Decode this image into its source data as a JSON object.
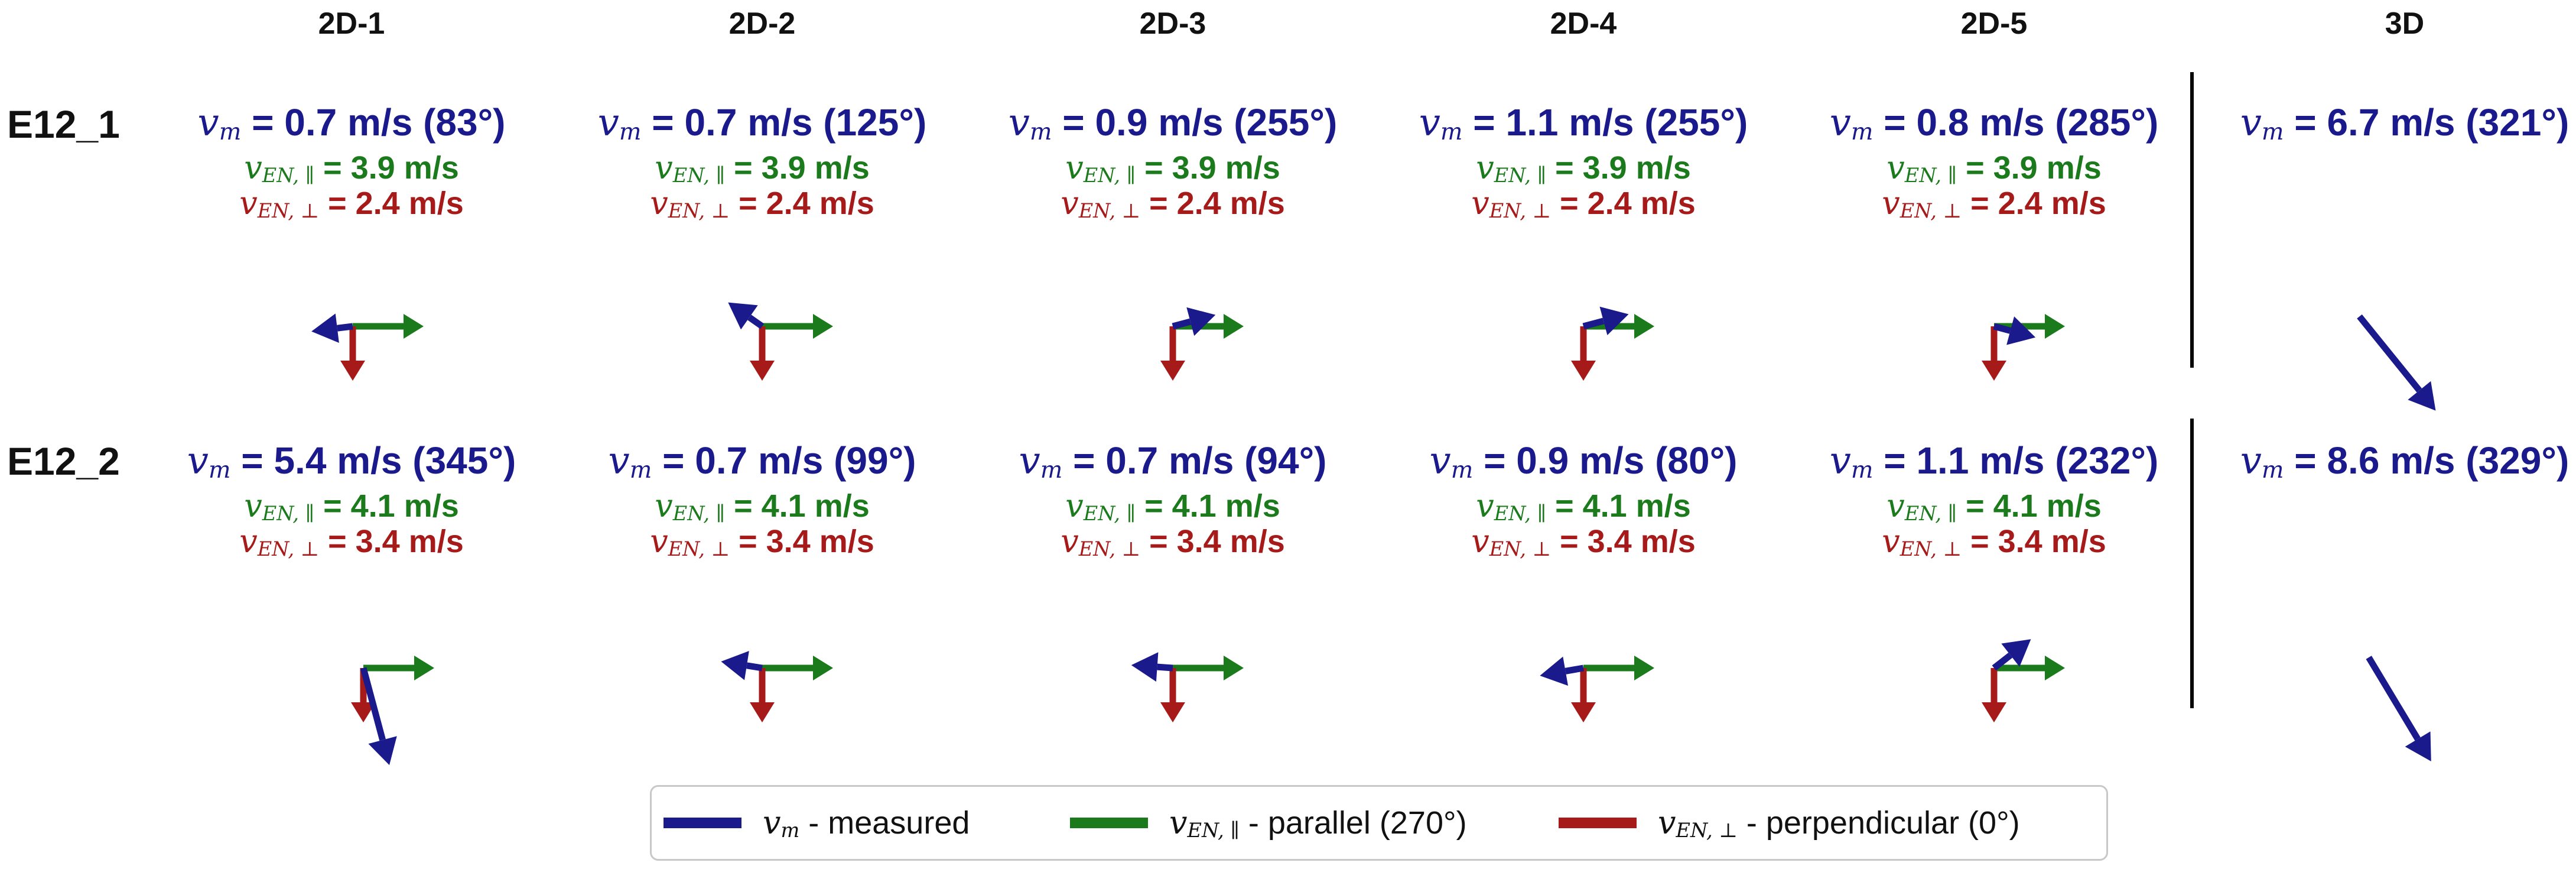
{
  "columns": [
    "2D-1",
    "2D-2",
    "2D-3",
    "2D-4",
    "2D-5",
    "3D"
  ],
  "symbols": {
    "vm": "v",
    "vm_sub": "m",
    "ven": "v",
    "ven_par_sub": "EN, ∥",
    "ven_perp_sub": "EN, ⊥"
  },
  "rows": [
    {
      "label": "E12_1",
      "cells": [
        {
          "vm_value": " = 0.7 m/s (83°)",
          "vm_angle_deg": 83,
          "ven_par_value": " = 3.9 m/s",
          "ven_perp_value": " = 2.4 m/s"
        },
        {
          "vm_value": " = 0.7 m/s (125°)",
          "vm_angle_deg": 125,
          "ven_par_value": " = 3.9 m/s",
          "ven_perp_value": " = 2.4 m/s"
        },
        {
          "vm_value": " = 0.9 m/s (255°)",
          "vm_angle_deg": 255,
          "ven_par_value": " = 3.9 m/s",
          "ven_perp_value": " = 2.4 m/s"
        },
        {
          "vm_value": " = 1.1 m/s (255°)",
          "vm_angle_deg": 255,
          "ven_par_value": " = 3.9 m/s",
          "ven_perp_value": " = 2.4 m/s"
        },
        {
          "vm_value": " = 0.8 m/s (285°)",
          "vm_angle_deg": 285,
          "ven_par_value": " = 3.9 m/s",
          "ven_perp_value": " = 2.4 m/s"
        }
      ],
      "three_d": {
        "vm_value": " = 6.7 m/s (321°)",
        "vm_angle_deg": 321
      }
    },
    {
      "label": "E12_2",
      "cells": [
        {
          "vm_value": " = 5.4 m/s (345°)",
          "vm_angle_deg": 345,
          "ven_par_value": " = 4.1 m/s",
          "ven_perp_value": " = 3.4 m/s"
        },
        {
          "vm_value": " = 0.7 m/s (99°)",
          "vm_angle_deg": 99,
          "ven_par_value": " = 4.1 m/s",
          "ven_perp_value": " = 3.4 m/s"
        },
        {
          "vm_value": " = 0.7 m/s (94°)",
          "vm_angle_deg": 94,
          "ven_par_value": " = 4.1 m/s",
          "ven_perp_value": " = 3.4 m/s"
        },
        {
          "vm_value": " = 0.9 m/s (80°)",
          "vm_angle_deg": 80,
          "ven_par_value": " = 4.1 m/s",
          "ven_perp_value": " = 3.4 m/s"
        },
        {
          "vm_value": " = 1.1 m/s (232°)",
          "vm_angle_deg": 232,
          "ven_par_value": " = 4.1 m/s",
          "ven_perp_value": " = 3.4 m/s"
        }
      ],
      "three_d": {
        "vm_value": " = 8.6 m/s (329°)",
        "vm_angle_deg": 329
      }
    }
  ],
  "legend": [
    {
      "symbol": "v",
      "sub": "m",
      "text": " - measured",
      "color": "#1a1a8c"
    },
    {
      "symbol": "v",
      "sub": "EN, ∥",
      "text": " - parallel (270°)",
      "color": "#1b7a1b"
    },
    {
      "symbol": "v",
      "sub": "EN, ⊥",
      "text": " - perpendicular (0°)",
      "color": "#a61a1a"
    }
  ],
  "colors": {
    "measured": "#1a1a8c",
    "parallel": "#1b7a1b",
    "perpendicular": "#a61a1a",
    "divider": "#000000"
  }
}
